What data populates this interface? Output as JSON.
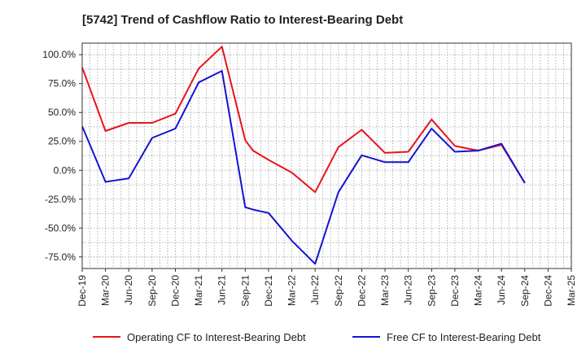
{
  "chart_data": {
    "type": "line",
    "title": "[5742]  Trend of Cashflow Ratio to Interest-Bearing Debt",
    "xlabel": "",
    "ylabel": "",
    "x_ticks": [
      "Dec-19",
      "Mar-20",
      "Jun-20",
      "Sep-20",
      "Dec-20",
      "Mar-21",
      "Jun-21",
      "Sep-21",
      "Dec-21",
      "Mar-22",
      "Jun-22",
      "Sep-22",
      "Dec-22",
      "Mar-23",
      "Jun-23",
      "Sep-23",
      "Dec-23",
      "Mar-24",
      "Jun-24",
      "Sep-24",
      "Dec-24",
      "Mar-25"
    ],
    "y_ticks": [
      "100.0%",
      "75.0%",
      "50.0%",
      "25.0%",
      "0.0%",
      "-25.0%",
      "-50.0%",
      "-75.0%"
    ],
    "ylim": [
      -85,
      110
    ],
    "y_unit": "%",
    "grid": true,
    "legend_position": "bottom",
    "series": [
      {
        "name": "Operating CF to Interest-Bearing Debt",
        "color": "#e8141c",
        "points": [
          [
            "Dec-19",
            89
          ],
          [
            "Mar-20",
            34
          ],
          [
            "Jun-20",
            41
          ],
          [
            "Sep-20",
            41
          ],
          [
            "Dec-20",
            49
          ],
          [
            "Mar-21",
            88
          ],
          [
            "Jun-21",
            107
          ],
          [
            "Sep-21",
            26
          ],
          [
            "Oct-21",
            17
          ],
          [
            "Dec-21",
            9
          ],
          [
            "Mar-22",
            -2
          ],
          [
            "Jun-22",
            -19
          ],
          [
            "Sep-22",
            20
          ],
          [
            "Dec-22",
            35
          ],
          [
            "Mar-23",
            15
          ],
          [
            "Jun-23",
            16
          ],
          [
            "Sep-23",
            44
          ],
          [
            "Dec-23",
            21
          ],
          [
            "Mar-24",
            17
          ],
          [
            "Jun-24",
            22
          ],
          [
            "Sep-24",
            -11
          ]
        ]
      },
      {
        "name": "Free CF to Interest-Bearing Debt",
        "color": "#1414d2",
        "points": [
          [
            "Dec-19",
            38
          ],
          [
            "Mar-20",
            -10
          ],
          [
            "Jun-20",
            -7
          ],
          [
            "Sep-20",
            28
          ],
          [
            "Dec-20",
            36
          ],
          [
            "Mar-21",
            76
          ],
          [
            "Jun-21",
            86
          ],
          [
            "Sep-21",
            -32
          ],
          [
            "Oct-21",
            -34
          ],
          [
            "Dec-21",
            -37
          ],
          [
            "Mar-22",
            -61
          ],
          [
            "Jun-22",
            -81
          ],
          [
            "Sep-22",
            -19
          ],
          [
            "Dec-22",
            13
          ],
          [
            "Mar-23",
            7
          ],
          [
            "Jun-23",
            7
          ],
          [
            "Sep-23",
            36
          ],
          [
            "Dec-23",
            16
          ],
          [
            "Mar-24",
            17
          ],
          [
            "Jun-24",
            23
          ],
          [
            "Sep-24",
            -11
          ]
        ]
      }
    ]
  }
}
